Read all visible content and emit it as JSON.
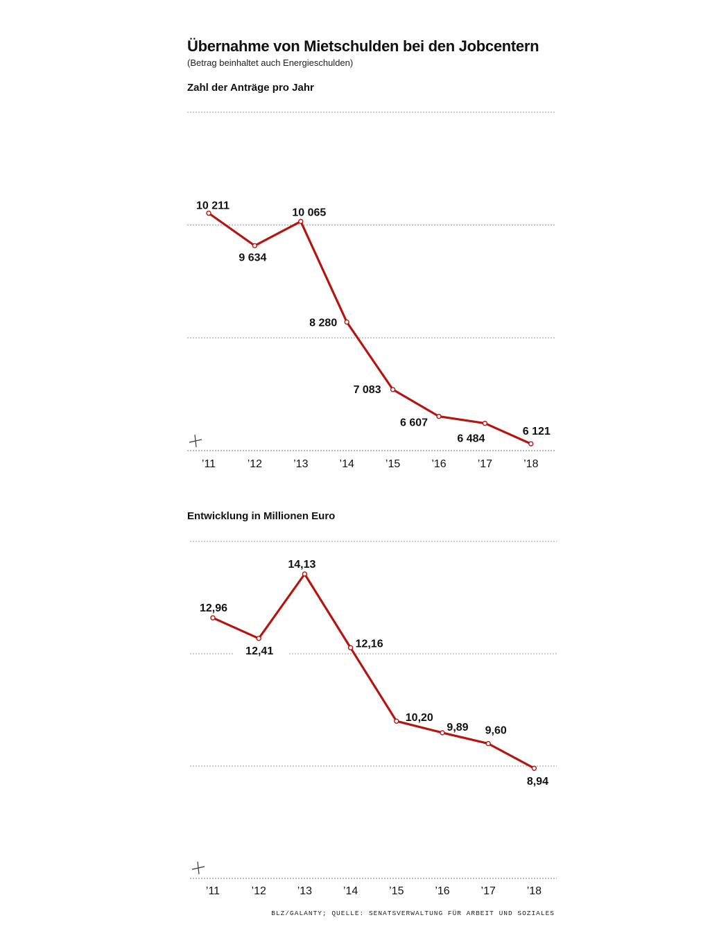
{
  "header": {
    "title": "Übernahme von Mietschulden bei den Jobcentern",
    "subtitle": "(Betrag beinhaltet auch Energieschulden)"
  },
  "source": "BLZ/GALANTY; QUELLE: SENATSVERWALTUNG FÜR ARBEIT UND SOZIALES",
  "colors": {
    "line": "#b5140f"
  },
  "chart_data": [
    {
      "type": "line",
      "title": "Zahl der Anträge pro Jahr",
      "categories": [
        "’11",
        "’12",
        "’13",
        "’14",
        "’15",
        "’16",
        "’17",
        "’18"
      ],
      "values": [
        10211,
        9634,
        10065,
        8280,
        7083,
        6607,
        6484,
        6121
      ],
      "labels": [
        "10 211",
        "9 634",
        "10 065",
        "8 280",
        "7 083",
        "6 607",
        "6 484",
        "6 121"
      ],
      "ylim": [
        6000,
        12000
      ],
      "gridlines": [
        8000,
        10000,
        12000
      ],
      "grid": true,
      "axis_break": true
    },
    {
      "type": "line",
      "title": "Entwicklung in Millionen Euro",
      "categories": [
        "’11",
        "’12",
        "’13",
        "’14",
        "’15",
        "’16",
        "’17",
        "’18"
      ],
      "values": [
        12.96,
        12.41,
        14.13,
        12.16,
        10.2,
        9.89,
        9.6,
        8.94
      ],
      "labels": [
        "12,96",
        "12,41",
        "14,13",
        "12,16",
        "10,20",
        "9,89",
        "9,60",
        "8,94"
      ],
      "ylim": [
        6,
        15
      ],
      "gridlines": [
        9,
        12,
        15
      ],
      "grid": true,
      "axis_break": true
    }
  ]
}
